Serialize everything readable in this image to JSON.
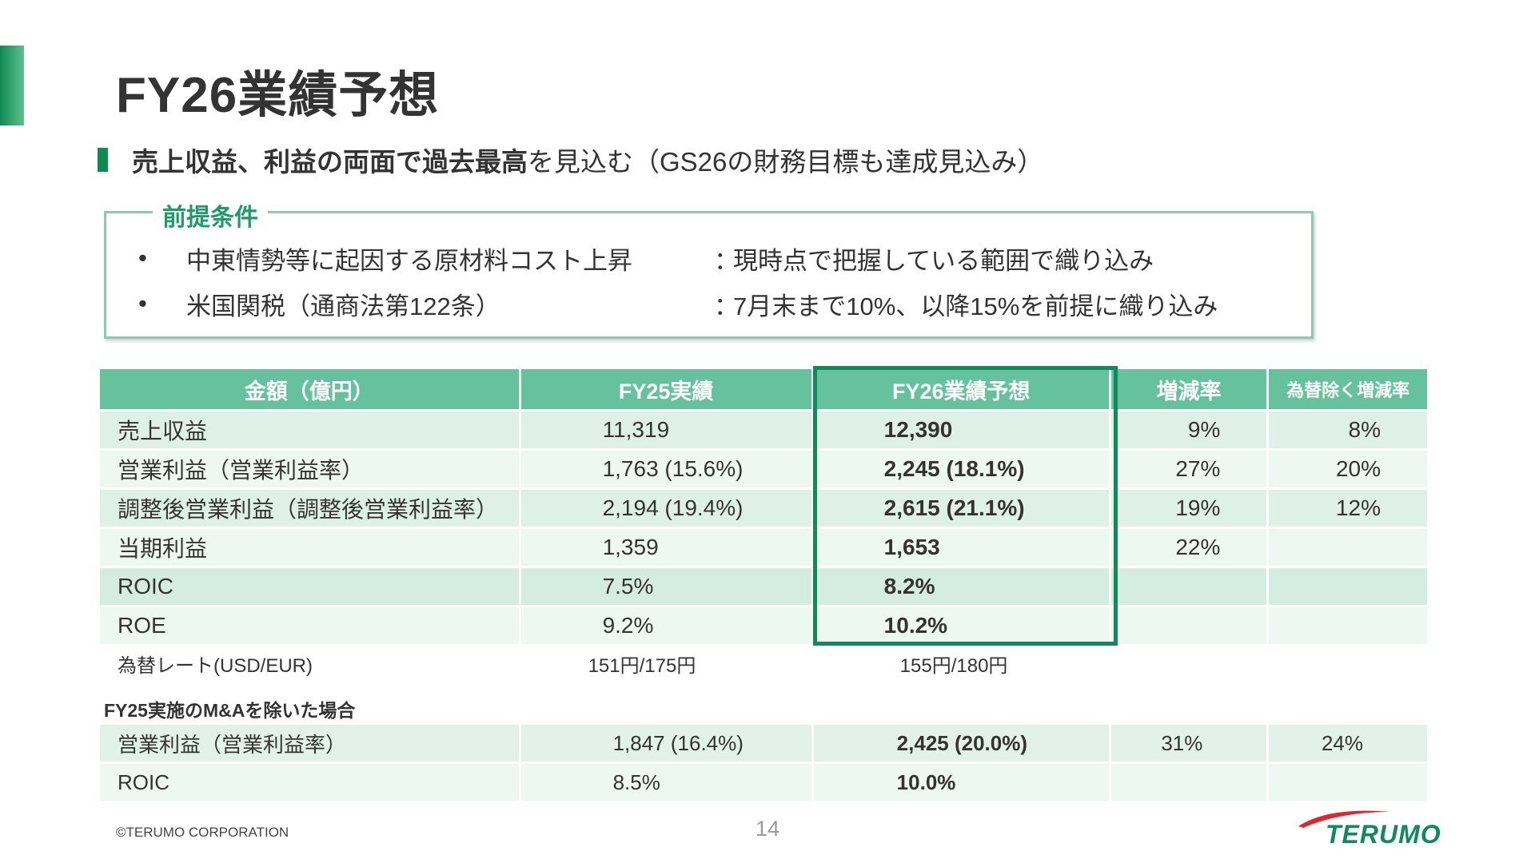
{
  "title": "FY26業績予想",
  "headline": {
    "bold_text": "売上収益、利益の両面で過去最高",
    "normal_text": "を見込む（GS26の財務目標も達成見込み）"
  },
  "premises": {
    "legend": "前提条件",
    "items": [
      {
        "bullet": "•",
        "item": "中東情勢等に起因する原材料コスト上昇",
        "colon": "：",
        "note": "現時点で把握している範囲で織り込み"
      },
      {
        "bullet": "•",
        "item": "米国関税（通商法第122条）",
        "colon": "：",
        "note": "7月末まで10%、以降15%を前提に織り込み"
      }
    ]
  },
  "table": {
    "headers": [
      "金額（億円）",
      "FY25実績",
      "FY26業績予想",
      "増減率",
      "為替除く増減率"
    ],
    "rows": [
      {
        "label": "売上収益",
        "fy25": "11,319",
        "fy26": "12,390",
        "change": "9%",
        "change_ex_fx": "8%"
      },
      {
        "label": "営業利益（営業利益率）",
        "fy25": "1,763 (15.6%)",
        "fy26": "2,245 (18.1%)",
        "change": "27%",
        "change_ex_fx": "20%"
      },
      {
        "label": "調整後営業利益（調整後営業利益率）",
        "fy25": "2,194 (19.4%)",
        "fy26": "2,615 (21.1%)",
        "change": "19%",
        "change_ex_fx": "12%"
      },
      {
        "label": "当期利益",
        "fy25": "1,359",
        "fy26": "1,653",
        "change": "22%",
        "change_ex_fx": ""
      },
      {
        "label": "ROIC",
        "fy25": "7.5%",
        "fy26": "8.2%",
        "change": "",
        "change_ex_fx": ""
      },
      {
        "label": "ROE",
        "fy25": "9.2%",
        "fy26": "10.2%",
        "change": "",
        "change_ex_fx": ""
      }
    ],
    "fx_row": {
      "label": "為替レート(USD/EUR)",
      "fy25": "151円/175円",
      "fy26": "155円/180円"
    }
  },
  "ma_section": {
    "title": "FY25実施のM&Aを除いた場合",
    "rows": [
      {
        "label": "営業利益（営業利益率）",
        "fy25": "1,847 (16.4%)",
        "fy26": "2,425 (20.0%)",
        "change": "31%",
        "change_ex_fx": "24%"
      },
      {
        "label": "ROIC",
        "fy25": "8.5%",
        "fy26": "10.0%",
        "change": "",
        "change_ex_fx": ""
      }
    ]
  },
  "footer": {
    "copyright": "©TERUMO CORPORATION",
    "page_number": "14",
    "logo_text": "TERUMO"
  },
  "colors": {
    "accent_green": "#0f8a52",
    "header_green": "#66c29e",
    "frame_green": "#0e8a5b",
    "premise_border": "#8ec9b0"
  }
}
